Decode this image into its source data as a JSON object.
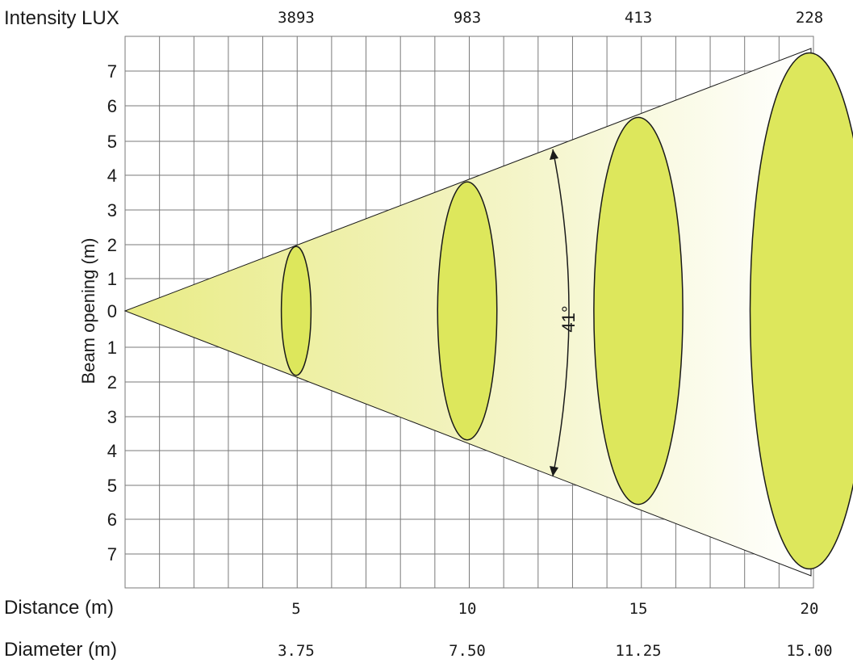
{
  "labels": {
    "intensity": "Intensity LUX",
    "distance": "Distance (m)",
    "diameter": "Diameter (m)",
    "y_axis": "Beam opening (m)",
    "angle": "41°"
  },
  "colors": {
    "fill": "#dde75c",
    "cone_start": "#e9ec86",
    "cone_end": "#ffffff",
    "grid": "#7a7a7a",
    "outline": "#1a1a1a"
  },
  "chart_data": {
    "type": "diagram",
    "beam_angle_deg": 41,
    "y_ticks_upper": [
      "7",
      "6",
      "5",
      "4",
      "3",
      "2",
      "1",
      "0"
    ],
    "y_ticks_lower": [
      "1",
      "2",
      "3",
      "4",
      "5",
      "6",
      "7"
    ],
    "points": [
      {
        "intensity": "3893",
        "distance": "5",
        "diameter": "3.75"
      },
      {
        "intensity": "983",
        "distance": "10",
        "diameter": "7.50"
      },
      {
        "intensity": "413",
        "distance": "15",
        "diameter": "11.25"
      },
      {
        "intensity": "228",
        "distance": "20",
        "diameter": "15.00"
      }
    ]
  }
}
